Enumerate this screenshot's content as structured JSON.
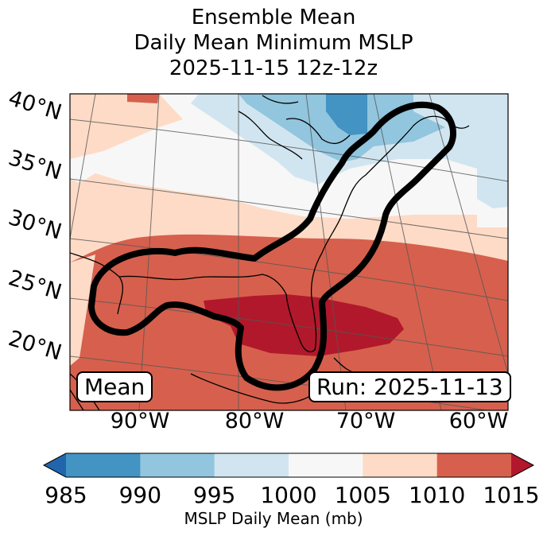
{
  "title": {
    "line1": "Ensemble Mean",
    "line2": "Daily Mean Minimum MSLP",
    "line3": "2025-11-15 12z-12z"
  },
  "map": {
    "lat_labels": [
      "40°N",
      "35°N",
      "30°N",
      "25°N",
      "20°N"
    ],
    "lon_labels": [
      "90°W",
      "80°W",
      "70°W",
      "60°W"
    ],
    "mean_box": "Mean",
    "run_box": "Run: 2025-11-13"
  },
  "colorbar": {
    "ticks": [
      "985",
      "990",
      "995",
      "1000",
      "1005",
      "1010",
      "1015"
    ],
    "label": "MSLP Daily Mean (mb)",
    "colors": [
      "#2166ac",
      "#4393c3",
      "#92c5de",
      "#d1e5f0",
      "#f7f7f7",
      "#fddbc7",
      "#d6604d",
      "#b2182b"
    ]
  }
}
